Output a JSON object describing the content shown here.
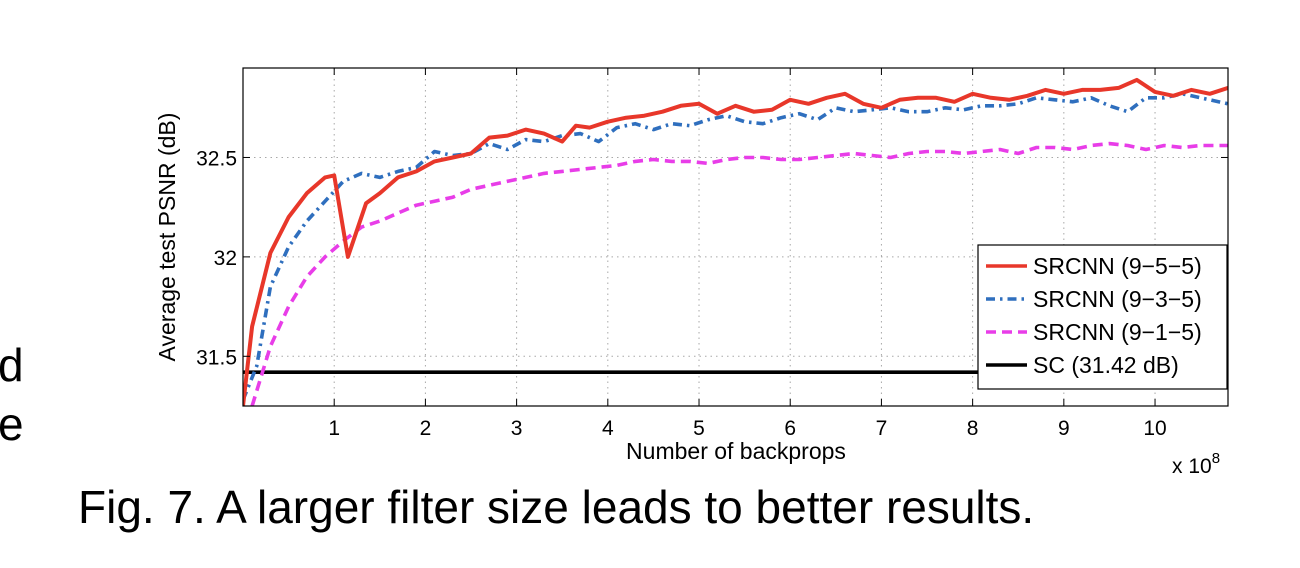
{
  "chart_data": {
    "type": "line",
    "title": "",
    "xlabel": "Number of backprops",
    "ylabel": "Average test PSNR (dB)",
    "x_multiplier": "x 10",
    "x_multiplier_exp": "8",
    "xlim": [
      0,
      10.8
    ],
    "ylim": [
      31.25,
      32.95
    ],
    "xticks": [
      1,
      2,
      3,
      4,
      5,
      6,
      7,
      8,
      9,
      10
    ],
    "xtick_labels": [
      "1",
      "2",
      "3",
      "4",
      "5",
      "6",
      "7",
      "8",
      "9",
      "10"
    ],
    "yticks": [
      31.5,
      32,
      32.5
    ],
    "ytick_labels": [
      "31.5",
      "32",
      "32.5"
    ],
    "grid": true,
    "legend_position": "lower-right",
    "series": [
      {
        "name": "SRCNN (9−5−5)",
        "color": "#e8372a",
        "style": "solid",
        "x": [
          0,
          0.1,
          0.3,
          0.5,
          0.7,
          0.9,
          1.0,
          1.15,
          1.35,
          1.5,
          1.7,
          1.9,
          2.1,
          2.3,
          2.5,
          2.7,
          2.9,
          3.1,
          3.3,
          3.5,
          3.65,
          3.8,
          4.0,
          4.2,
          4.4,
          4.6,
          4.8,
          5.0,
          5.2,
          5.4,
          5.6,
          5.8,
          6.0,
          6.2,
          6.4,
          6.6,
          6.8,
          7.0,
          7.2,
          7.4,
          7.6,
          7.8,
          8.0,
          8.2,
          8.4,
          8.6,
          8.8,
          9.0,
          9.2,
          9.4,
          9.6,
          9.8,
          10.0,
          10.2,
          10.4,
          10.6,
          10.8
        ],
        "values": [
          31.25,
          31.65,
          32.02,
          32.2,
          32.32,
          32.4,
          32.41,
          32.0,
          32.27,
          32.32,
          32.4,
          32.43,
          32.48,
          32.5,
          32.52,
          32.6,
          32.61,
          32.64,
          32.62,
          32.58,
          32.66,
          32.65,
          32.68,
          32.7,
          32.71,
          32.73,
          32.76,
          32.77,
          32.72,
          32.76,
          32.73,
          32.74,
          32.79,
          32.77,
          32.8,
          32.82,
          32.77,
          32.75,
          32.79,
          32.8,
          32.8,
          32.78,
          32.82,
          32.8,
          32.79,
          32.81,
          32.84,
          32.82,
          32.84,
          32.84,
          32.85,
          32.89,
          32.83,
          32.81,
          32.84,
          32.82,
          32.85
        ]
      },
      {
        "name": "SRCNN (9−3−5)",
        "color": "#2f6fbe",
        "style": "dashdot",
        "x": [
          0,
          0.15,
          0.3,
          0.5,
          0.7,
          0.9,
          1.1,
          1.3,
          1.5,
          1.7,
          1.9,
          2.1,
          2.3,
          2.5,
          2.7,
          2.9,
          3.1,
          3.3,
          3.5,
          3.7,
          3.9,
          4.1,
          4.3,
          4.5,
          4.7,
          4.9,
          5.1,
          5.3,
          5.5,
          5.7,
          5.9,
          6.1,
          6.3,
          6.5,
          6.7,
          6.9,
          7.1,
          7.3,
          7.5,
          7.7,
          7.9,
          8.1,
          8.3,
          8.5,
          8.7,
          8.9,
          9.1,
          9.3,
          9.5,
          9.7,
          9.9,
          10.1,
          10.3,
          10.5,
          10.8
        ],
        "values": [
          31.28,
          31.45,
          31.85,
          32.05,
          32.18,
          32.28,
          32.38,
          32.42,
          32.4,
          32.43,
          32.45,
          32.53,
          32.51,
          32.52,
          32.57,
          32.54,
          32.59,
          32.58,
          32.61,
          32.62,
          32.58,
          32.65,
          32.67,
          32.64,
          32.67,
          32.66,
          32.69,
          32.71,
          32.68,
          32.67,
          32.7,
          32.72,
          32.69,
          32.75,
          32.73,
          32.74,
          32.75,
          32.73,
          32.73,
          32.75,
          32.74,
          32.76,
          32.76,
          32.77,
          32.8,
          32.79,
          32.78,
          32.8,
          32.76,
          32.73,
          32.8,
          32.8,
          32.82,
          32.8,
          32.77
        ]
      },
      {
        "name": "SRCNN (9−1−5)",
        "color": "#e83de8",
        "style": "dashed",
        "x": [
          0.1,
          0.3,
          0.5,
          0.7,
          0.9,
          1.1,
          1.3,
          1.5,
          1.7,
          1.9,
          2.1,
          2.3,
          2.5,
          2.7,
          2.9,
          3.1,
          3.3,
          3.5,
          3.7,
          3.9,
          4.1,
          4.3,
          4.5,
          4.7,
          4.9,
          5.1,
          5.3,
          5.5,
          5.7,
          5.9,
          6.1,
          6.3,
          6.5,
          6.7,
          6.9,
          7.1,
          7.3,
          7.5,
          7.7,
          7.9,
          8.1,
          8.3,
          8.5,
          8.7,
          8.9,
          9.1,
          9.3,
          9.5,
          9.7,
          9.9,
          10.1,
          10.3,
          10.5,
          10.8
        ],
        "values": [
          31.25,
          31.55,
          31.75,
          31.9,
          32.0,
          32.08,
          32.15,
          32.18,
          32.22,
          32.26,
          32.28,
          32.3,
          32.34,
          32.36,
          32.38,
          32.4,
          32.42,
          32.43,
          32.44,
          32.45,
          32.46,
          32.48,
          32.49,
          32.48,
          32.48,
          32.47,
          32.49,
          32.5,
          32.5,
          32.49,
          32.49,
          32.5,
          32.51,
          32.52,
          32.51,
          32.5,
          32.52,
          32.53,
          32.53,
          32.52,
          32.53,
          32.54,
          32.52,
          32.55,
          32.55,
          32.54,
          32.56,
          32.57,
          32.56,
          32.54,
          32.56,
          32.55,
          32.56,
          32.56
        ]
      },
      {
        "name": "SC (31.42 dB)",
        "color": "#000000",
        "style": "solid",
        "x": [
          0,
          10.8
        ],
        "values": [
          31.42,
          31.42
        ]
      }
    ]
  },
  "caption": "Fig. 7.  A larger filter size leads to better results.",
  "side_text": [
    "d",
    "e"
  ]
}
